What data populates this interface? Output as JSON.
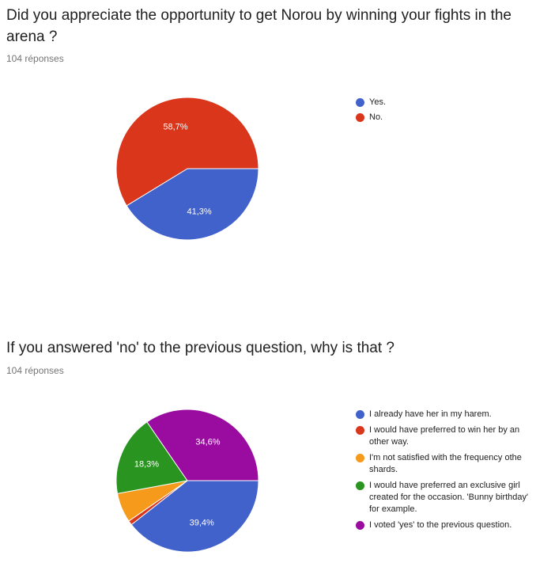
{
  "questions": [
    {
      "title": "Did you appreciate the opportunity to get Norou by winning your fights in the arena ?",
      "responses": "104 réponses",
      "chart_data": {
        "type": "pie",
        "slices": [
          {
            "label": "Yes.",
            "value": 41.3,
            "display": "41,3%",
            "color": "#4161cb"
          },
          {
            "label": "No.",
            "value": 58.7,
            "display": "58,7%",
            "color": "#d9361c"
          }
        ],
        "legend": "right"
      }
    },
    {
      "title": "If you answered 'no' to the previous question, why is that ?",
      "responses": "104 réponses",
      "chart_data": {
        "type": "pie",
        "slices": [
          {
            "label": "I already have her in my harem.",
            "value": 39.4,
            "display": "39,4%",
            "color": "#4161cb"
          },
          {
            "label": "I would have preferred to win her by an other way.",
            "value": 1.0,
            "display": "",
            "color": "#d9361c"
          },
          {
            "label": "I'm not satisfied with the frequency othe shards.",
            "value": 6.7,
            "display": "",
            "color": "#f59a1b"
          },
          {
            "label": "I would have preferred an exclusive girl created for the occasion. 'Bunny birthday' for example.",
            "value": 18.3,
            "display": "18,3%",
            "color": "#2a9421"
          },
          {
            "label": "I voted 'yes' to the previous question.",
            "value": 34.6,
            "display": "34,6%",
            "color": "#9a0ca0"
          }
        ],
        "legend": "right"
      }
    }
  ]
}
